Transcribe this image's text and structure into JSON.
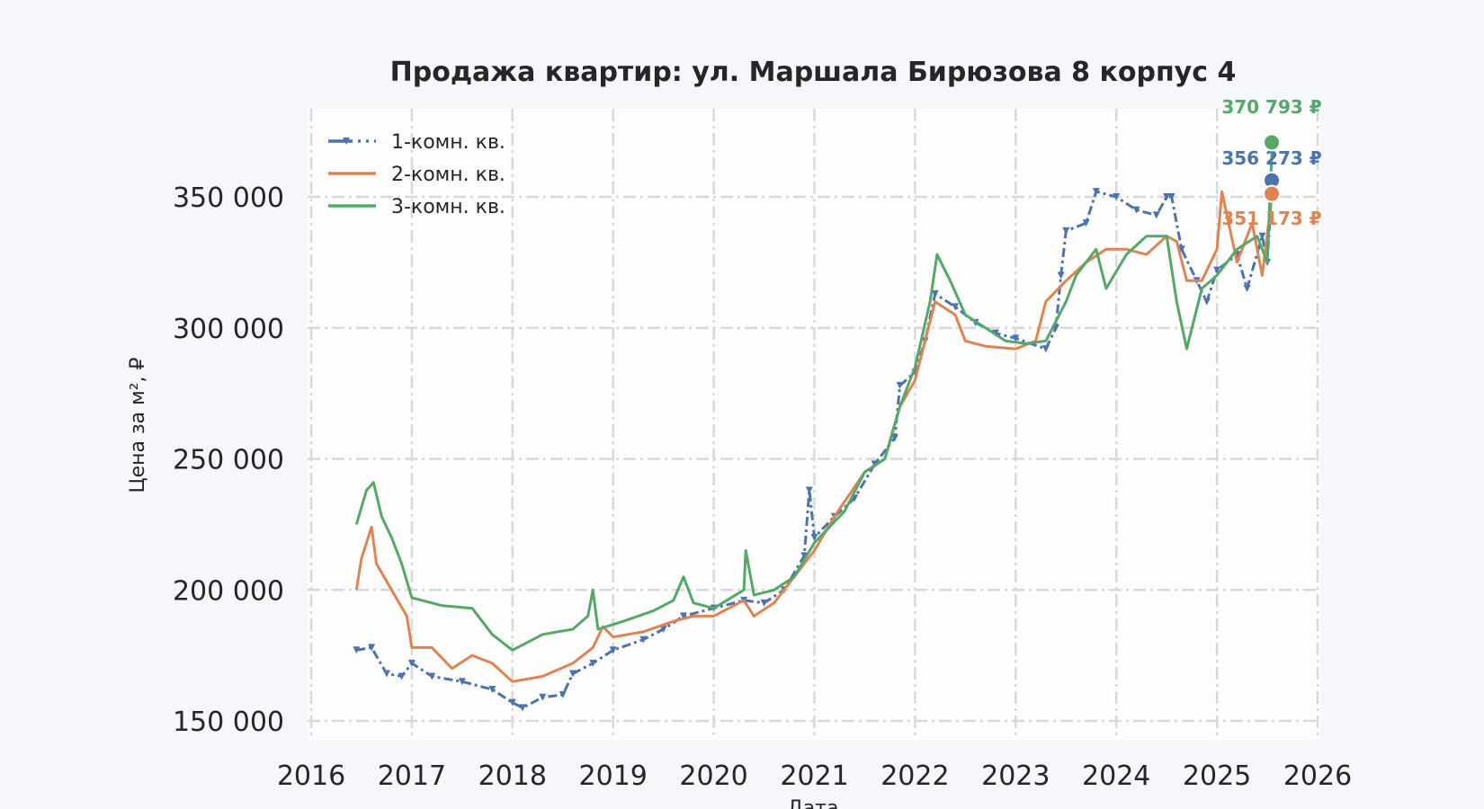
{
  "chart_data": {
    "type": "line",
    "title": "Продажа квартир: ул. Маршала Бирюзова 8 корпус 4",
    "xlabel": "Дата",
    "ylabel": "Цена за м², ₽",
    "xlim": [
      "2016-01-01",
      "2026-01-01"
    ],
    "ylim": [
      143000,
      383000
    ],
    "x_ticks": [
      "2016",
      "2017",
      "2018",
      "2019",
      "2020",
      "2021",
      "2022",
      "2023",
      "2024",
      "2025",
      "2026"
    ],
    "y_ticks": [
      150000,
      200000,
      250000,
      300000,
      350000
    ],
    "y_tick_labels": [
      "150 000",
      "200 000",
      "250 000",
      "300 000",
      "350 000"
    ],
    "grid": true,
    "grid_style": "dash-dot",
    "legend_position": "top-left",
    "series": [
      {
        "name": "1-комн. кв.",
        "color": "#4c72b0",
        "line_style": "dash-dot",
        "marker": "triangle-down",
        "end_label": "356 273 ₽",
        "end_value": 356273,
        "points": [
          [
            "2016-06-13",
            177000
          ],
          [
            "2016-08-07",
            178000
          ],
          [
            "2016-10-01",
            168000
          ],
          [
            "2016-11-25",
            167000
          ],
          [
            "2017-01-01",
            172000
          ],
          [
            "2017-03-13",
            167000
          ],
          [
            "2017-07-01",
            165000
          ],
          [
            "2017-10-19",
            162000
          ],
          [
            "2018-01-01",
            157000
          ],
          [
            "2018-02-07",
            155000
          ],
          [
            "2018-04-19",
            159000
          ],
          [
            "2018-07-01",
            160000
          ],
          [
            "2018-08-07",
            168000
          ],
          [
            "2018-10-19",
            172000
          ],
          [
            "2019-01-01",
            177000
          ],
          [
            "2019-04-19",
            181000
          ],
          [
            "2019-07-01",
            185000
          ],
          [
            "2019-09-13",
            190000
          ],
          [
            "2020-01-01",
            193000
          ],
          [
            "2020-04-19",
            196000
          ],
          [
            "2020-07-01",
            195000
          ],
          [
            "2020-09-13",
            200000
          ],
          [
            "2020-11-25",
            213000
          ],
          [
            "2020-12-13",
            238000
          ],
          [
            "2021-01-01",
            220000
          ],
          [
            "2021-03-13",
            228000
          ],
          [
            "2021-05-25",
            235000
          ],
          [
            "2021-08-07",
            248000
          ],
          [
            "2021-10-19",
            258000
          ],
          [
            "2021-11-07",
            278000
          ],
          [
            "2022-01-01",
            283000
          ],
          [
            "2022-02-07",
            295000
          ],
          [
            "2022-03-13",
            313000
          ],
          [
            "2022-05-25",
            308000
          ],
          [
            "2022-08-07",
            302000
          ],
          [
            "2022-10-19",
            298000
          ],
          [
            "2023-01-01",
            296000
          ],
          [
            "2023-04-19",
            292000
          ],
          [
            "2023-05-25",
            300000
          ],
          [
            "2023-06-13",
            320000
          ],
          [
            "2023-07-01",
            337000
          ],
          [
            "2023-09-13",
            340000
          ],
          [
            "2023-10-19",
            352000
          ],
          [
            "2024-01-01",
            350000
          ],
          [
            "2024-03-13",
            345000
          ],
          [
            "2024-05-25",
            343000
          ],
          [
            "2024-07-01",
            350000
          ],
          [
            "2024-07-19",
            350000
          ],
          [
            "2024-08-25",
            330000
          ],
          [
            "2024-10-19",
            318000
          ],
          [
            "2024-11-25",
            310000
          ],
          [
            "2025-01-01",
            322000
          ],
          [
            "2025-03-13",
            328000
          ],
          [
            "2025-04-19",
            315000
          ],
          [
            "2025-06-13",
            335000
          ],
          [
            "2025-07-01",
            325000
          ],
          [
            "2025-07-19",
            356273
          ]
        ]
      },
      {
        "name": "2-комн. кв.",
        "color": "#dd8452",
        "line_style": "solid",
        "end_label": "351 173 ₽",
        "end_value": 351173,
        "points": [
          [
            "2016-06-13",
            200000
          ],
          [
            "2016-07-01",
            212000
          ],
          [
            "2016-08-07",
            224000
          ],
          [
            "2016-08-25",
            210000
          ],
          [
            "2016-10-19",
            200000
          ],
          [
            "2016-12-13",
            190000
          ],
          [
            "2017-01-01",
            178000
          ],
          [
            "2017-03-13",
            178000
          ],
          [
            "2017-05-25",
            170000
          ],
          [
            "2017-08-07",
            175000
          ],
          [
            "2017-10-19",
            172000
          ],
          [
            "2018-01-01",
            165000
          ],
          [
            "2018-04-19",
            167000
          ],
          [
            "2018-08-07",
            172000
          ],
          [
            "2018-10-19",
            178000
          ],
          [
            "2018-11-25",
            186000
          ],
          [
            "2019-01-01",
            182000
          ],
          [
            "2019-04-19",
            184000
          ],
          [
            "2019-08-07",
            188000
          ],
          [
            "2019-10-19",
            190000
          ],
          [
            "2020-01-01",
            190000
          ],
          [
            "2020-04-19",
            196000
          ],
          [
            "2020-05-25",
            190000
          ],
          [
            "2020-08-07",
            195000
          ],
          [
            "2020-10-19",
            205000
          ],
          [
            "2021-01-01",
            215000
          ],
          [
            "2021-03-13",
            228000
          ],
          [
            "2021-07-01",
            245000
          ],
          [
            "2021-09-13",
            250000
          ],
          [
            "2021-11-07",
            270000
          ],
          [
            "2022-01-01",
            280000
          ],
          [
            "2022-03-13",
            310000
          ],
          [
            "2022-05-25",
            305000
          ],
          [
            "2022-07-01",
            295000
          ],
          [
            "2022-09-13",
            293000
          ],
          [
            "2023-01-01",
            292000
          ],
          [
            "2023-03-13",
            295000
          ],
          [
            "2023-04-19",
            310000
          ],
          [
            "2023-07-01",
            318000
          ],
          [
            "2023-09-13",
            325000
          ],
          [
            "2023-11-25",
            330000
          ],
          [
            "2024-02-07",
            330000
          ],
          [
            "2024-04-19",
            328000
          ],
          [
            "2024-07-01",
            335000
          ],
          [
            "2024-08-07",
            333000
          ],
          [
            "2024-09-13",
            318000
          ],
          [
            "2024-11-07",
            318000
          ],
          [
            "2025-01-01",
            330000
          ],
          [
            "2025-01-19",
            352000
          ],
          [
            "2025-03-13",
            325000
          ],
          [
            "2025-05-07",
            340000
          ],
          [
            "2025-06-13",
            320000
          ],
          [
            "2025-07-19",
            351173
          ]
        ]
      },
      {
        "name": "3-комн. кв.",
        "color": "#55a868",
        "line_style": "solid",
        "end_label": "370 793 ₽",
        "end_value": 370793,
        "points": [
          [
            "2016-06-13",
            225000
          ],
          [
            "2016-07-19",
            238000
          ],
          [
            "2016-08-14",
            241000
          ],
          [
            "2016-09-13",
            228000
          ],
          [
            "2016-10-19",
            220000
          ],
          [
            "2016-11-25",
            210000
          ],
          [
            "2017-01-01",
            197000
          ],
          [
            "2017-04-19",
            194000
          ],
          [
            "2017-08-07",
            193000
          ],
          [
            "2017-10-19",
            183000
          ],
          [
            "2018-01-01",
            177000
          ],
          [
            "2018-04-19",
            183000
          ],
          [
            "2018-08-07",
            185000
          ],
          [
            "2018-10-01",
            190000
          ],
          [
            "2018-10-19",
            200000
          ],
          [
            "2018-11-07",
            185000
          ],
          [
            "2019-02-07",
            188000
          ],
          [
            "2019-05-25",
            192000
          ],
          [
            "2019-08-07",
            196000
          ],
          [
            "2019-09-13",
            205000
          ],
          [
            "2019-10-19",
            195000
          ],
          [
            "2020-01-01",
            193000
          ],
          [
            "2020-04-19",
            200000
          ],
          [
            "2020-04-26",
            215000
          ],
          [
            "2020-05-25",
            198000
          ],
          [
            "2020-08-07",
            200000
          ],
          [
            "2020-10-19",
            205000
          ],
          [
            "2021-01-01",
            218000
          ],
          [
            "2021-04-19",
            230000
          ],
          [
            "2021-07-01",
            245000
          ],
          [
            "2021-09-13",
            250000
          ],
          [
            "2021-11-07",
            270000
          ],
          [
            "2022-01-01",
            285000
          ],
          [
            "2022-02-25",
            310000
          ],
          [
            "2022-03-20",
            328000
          ],
          [
            "2022-05-07",
            318000
          ],
          [
            "2022-07-01",
            305000
          ],
          [
            "2022-09-13",
            300000
          ],
          [
            "2022-11-25",
            295000
          ],
          [
            "2023-02-07",
            294000
          ],
          [
            "2023-04-19",
            295000
          ],
          [
            "2023-07-01",
            310000
          ],
          [
            "2023-08-07",
            320000
          ],
          [
            "2023-10-19",
            330000
          ],
          [
            "2023-11-25",
            315000
          ],
          [
            "2024-02-07",
            328000
          ],
          [
            "2024-04-19",
            335000
          ],
          [
            "2024-07-01",
            335000
          ],
          [
            "2024-08-07",
            310000
          ],
          [
            "2024-09-13",
            292000
          ],
          [
            "2024-11-07",
            315000
          ],
          [
            "2025-01-01",
            320000
          ],
          [
            "2025-03-13",
            330000
          ],
          [
            "2025-05-25",
            335000
          ],
          [
            "2025-07-01",
            325000
          ],
          [
            "2025-07-19",
            370793
          ]
        ]
      }
    ]
  }
}
